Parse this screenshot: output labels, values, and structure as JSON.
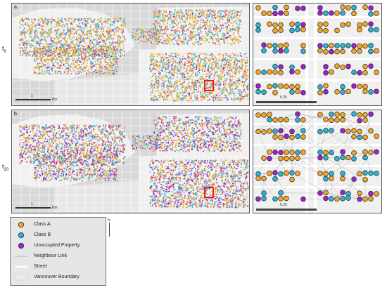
{
  "panels": {
    "a": {
      "label": "a.",
      "time_label": "t",
      "time_sub": "0",
      "scale": {
        "label": "1",
        "unit": "Km"
      }
    },
    "a_zoom": {
      "scale_label": "0.25"
    },
    "b": {
      "label": "b.",
      "time_label": "t",
      "time_sub": "20",
      "scale": {
        "label": "1",
        "unit": "Km"
      }
    },
    "b_zoom": {
      "scale_label": "0.25"
    }
  },
  "legend": {
    "items": [
      {
        "label": "Class A",
        "symbol": "circle",
        "color": "#f5a623"
      },
      {
        "label": "Class B",
        "symbol": "circle",
        "color": "#29b6d6"
      },
      {
        "label": "Unoccupied Property",
        "symbol": "circle",
        "color": "#a21fd0"
      },
      {
        "label": "Neighbour Link",
        "symbol": "line",
        "color": "#9a9a9a"
      },
      {
        "label": "Street",
        "symbol": "line",
        "color": "#ffffff"
      },
      {
        "label": "Vancouver Boundary",
        "symbol": "box",
        "color": "#ececec"
      }
    ]
  },
  "north_label": "N",
  "colors": {
    "class_a": "#f5a623",
    "class_b": "#29b6d6",
    "unoccupied": "#a21fd0",
    "highlight": "#e8211b",
    "water": "#d8d8d8",
    "land": "#f0f0f0"
  }
}
